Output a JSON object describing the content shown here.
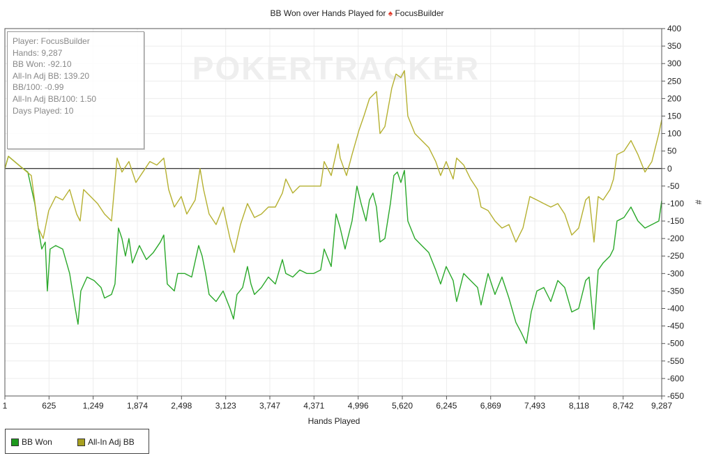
{
  "chart_data": {
    "type": "line",
    "title_prefix": "BB Won over Hands Played for",
    "title_player": "FocusBuilder",
    "title_icon": "spade-icon",
    "xlabel": "Hands Played",
    "ylabel": "#",
    "xlim": [
      1,
      9287
    ],
    "ylim": [
      -650,
      400
    ],
    "x_ticks": [
      1,
      625,
      1249,
      1874,
      2498,
      3123,
      3747,
      4371,
      4996,
      5620,
      6245,
      6869,
      7493,
      8118,
      8742,
      9287
    ],
    "x_tick_labels": [
      "1",
      "625",
      "1,249",
      "1,874",
      "2,498",
      "3,123",
      "3,747",
      "4,371",
      "4,996",
      "5,620",
      "6,245",
      "6,869",
      "7,493",
      "8,118",
      "8,742",
      "9,287"
    ],
    "y_ticks": [
      400,
      350,
      300,
      250,
      200,
      150,
      100,
      50,
      0,
      -50,
      -100,
      -150,
      -200,
      -250,
      -300,
      -350,
      -400,
      -450,
      -500,
      -550,
      -600,
      -650
    ],
    "grid": true,
    "legend_position": "bottom-left",
    "watermark": "POKERTRACKER",
    "series": [
      {
        "name": "BB Won",
        "color": "#2aa82a",
        "points": [
          [
            1,
            0
          ],
          [
            50,
            35
          ],
          [
            227,
            5
          ],
          [
            325,
            -10
          ],
          [
            424,
            -100
          ],
          [
            473,
            -170
          ],
          [
            522,
            -230
          ],
          [
            572,
            -210
          ],
          [
            601,
            -350
          ],
          [
            641,
            -230
          ],
          [
            720,
            -220
          ],
          [
            818,
            -230
          ],
          [
            917,
            -300
          ],
          [
            996,
            -400
          ],
          [
            1035,
            -445
          ],
          [
            1075,
            -350
          ],
          [
            1163,
            -310
          ],
          [
            1262,
            -320
          ],
          [
            1360,
            -340
          ],
          [
            1410,
            -370
          ],
          [
            1508,
            -360
          ],
          [
            1558,
            -330
          ],
          [
            1607,
            -170
          ],
          [
            1656,
            -200
          ],
          [
            1705,
            -250
          ],
          [
            1755,
            -200
          ],
          [
            1804,
            -270
          ],
          [
            1903,
            -220
          ],
          [
            2001,
            -260
          ],
          [
            2100,
            -240
          ],
          [
            2199,
            -210
          ],
          [
            2248,
            -190
          ],
          [
            2297,
            -330
          ],
          [
            2396,
            -350
          ],
          [
            2445,
            -300
          ],
          [
            2543,
            -300
          ],
          [
            2642,
            -310
          ],
          [
            2740,
            -220
          ],
          [
            2790,
            -250
          ],
          [
            2839,
            -300
          ],
          [
            2888,
            -360
          ],
          [
            2987,
            -380
          ],
          [
            3086,
            -350
          ],
          [
            3184,
            -400
          ],
          [
            3233,
            -430
          ],
          [
            3283,
            -360
          ],
          [
            3362,
            -340
          ],
          [
            3431,
            -280
          ],
          [
            3480,
            -330
          ],
          [
            3529,
            -360
          ],
          [
            3628,
            -340
          ],
          [
            3726,
            -310
          ],
          [
            3825,
            -330
          ],
          [
            3924,
            -260
          ],
          [
            3973,
            -300
          ],
          [
            4071,
            -310
          ],
          [
            4170,
            -290
          ],
          [
            4269,
            -300
          ],
          [
            4367,
            -300
          ],
          [
            4466,
            -290
          ],
          [
            4515,
            -230
          ],
          [
            4614,
            -280
          ],
          [
            4683,
            -130
          ],
          [
            4742,
            -170
          ],
          [
            4811,
            -230
          ],
          [
            4909,
            -150
          ],
          [
            4978,
            -50
          ],
          [
            5037,
            -100
          ],
          [
            5106,
            -150
          ],
          [
            5156,
            -90
          ],
          [
            5205,
            -70
          ],
          [
            5254,
            -110
          ],
          [
            5304,
            -210
          ],
          [
            5373,
            -200
          ],
          [
            5451,
            -100
          ],
          [
            5501,
            -20
          ],
          [
            5550,
            -10
          ],
          [
            5599,
            -40
          ],
          [
            5649,
            -5
          ],
          [
            5698,
            -150
          ],
          [
            5797,
            -200
          ],
          [
            5895,
            -220
          ],
          [
            5994,
            -240
          ],
          [
            6092,
            -290
          ],
          [
            6161,
            -330
          ],
          [
            6240,
            -280
          ],
          [
            6339,
            -320
          ],
          [
            6388,
            -380
          ],
          [
            6487,
            -300
          ],
          [
            6585,
            -320
          ],
          [
            6684,
            -340
          ],
          [
            6733,
            -390
          ],
          [
            6832,
            -300
          ],
          [
            6930,
            -360
          ],
          [
            7029,
            -310
          ],
          [
            7127,
            -370
          ],
          [
            7226,
            -440
          ],
          [
            7305,
            -470
          ],
          [
            7374,
            -500
          ],
          [
            7443,
            -410
          ],
          [
            7522,
            -350
          ],
          [
            7620,
            -340
          ],
          [
            7719,
            -380
          ],
          [
            7818,
            -320
          ],
          [
            7916,
            -340
          ],
          [
            8015,
            -410
          ],
          [
            8113,
            -400
          ],
          [
            8212,
            -320
          ],
          [
            8261,
            -310
          ],
          [
            8330,
            -460
          ],
          [
            8389,
            -290
          ],
          [
            8458,
            -270
          ],
          [
            8557,
            -250
          ],
          [
            8606,
            -230
          ],
          [
            8655,
            -150
          ],
          [
            8754,
            -140
          ],
          [
            8852,
            -110
          ],
          [
            8951,
            -150
          ],
          [
            9050,
            -170
          ],
          [
            9148,
            -160
          ],
          [
            9247,
            -150
          ],
          [
            9287,
            -92.1
          ]
        ]
      },
      {
        "name": "All-In Adj BB",
        "color": "#b5b030",
        "points": [
          [
            1,
            0
          ],
          [
            50,
            35
          ],
          [
            227,
            5
          ],
          [
            375,
            -20
          ],
          [
            473,
            -170
          ],
          [
            542,
            -200
          ],
          [
            621,
            -120
          ],
          [
            720,
            -80
          ],
          [
            818,
            -90
          ],
          [
            917,
            -60
          ],
          [
            1015,
            -130
          ],
          [
            1065,
            -150
          ],
          [
            1114,
            -60
          ],
          [
            1213,
            -80
          ],
          [
            1311,
            -100
          ],
          [
            1410,
            -130
          ],
          [
            1508,
            -150
          ],
          [
            1587,
            30
          ],
          [
            1656,
            -10
          ],
          [
            1755,
            20
          ],
          [
            1853,
            -40
          ],
          [
            1952,
            -10
          ],
          [
            2050,
            20
          ],
          [
            2149,
            10
          ],
          [
            2248,
            30
          ],
          [
            2317,
            -60
          ],
          [
            2396,
            -110
          ],
          [
            2494,
            -80
          ],
          [
            2573,
            -130
          ],
          [
            2691,
            -90
          ],
          [
            2760,
            0
          ],
          [
            2810,
            -60
          ],
          [
            2888,
            -130
          ],
          [
            2987,
            -160
          ],
          [
            3086,
            -110
          ],
          [
            3184,
            -200
          ],
          [
            3243,
            -240
          ],
          [
            3332,
            -160
          ],
          [
            3431,
            -100
          ],
          [
            3529,
            -140
          ],
          [
            3628,
            -130
          ],
          [
            3726,
            -110
          ],
          [
            3825,
            -110
          ],
          [
            3924,
            -70
          ],
          [
            3973,
            -30
          ],
          [
            4071,
            -70
          ],
          [
            4170,
            -50
          ],
          [
            4269,
            -50
          ],
          [
            4367,
            -50
          ],
          [
            4466,
            -50
          ],
          [
            4515,
            20
          ],
          [
            4614,
            -20
          ],
          [
            4713,
            70
          ],
          [
            4742,
            30
          ],
          [
            4830,
            -20
          ],
          [
            4909,
            40
          ],
          [
            5008,
            110
          ],
          [
            5077,
            150
          ],
          [
            5156,
            200
          ],
          [
            5254,
            220
          ],
          [
            5304,
            100
          ],
          [
            5373,
            120
          ],
          [
            5471,
            230
          ],
          [
            5530,
            270
          ],
          [
            5599,
            260
          ],
          [
            5649,
            280
          ],
          [
            5698,
            150
          ],
          [
            5797,
            100
          ],
          [
            5895,
            80
          ],
          [
            5994,
            60
          ],
          [
            6092,
            20
          ],
          [
            6161,
            -20
          ],
          [
            6240,
            20
          ],
          [
            6339,
            -30
          ],
          [
            6388,
            30
          ],
          [
            6487,
            10
          ],
          [
            6585,
            -30
          ],
          [
            6684,
            -60
          ],
          [
            6733,
            -110
          ],
          [
            6832,
            -120
          ],
          [
            6930,
            -150
          ],
          [
            7029,
            -170
          ],
          [
            7127,
            -160
          ],
          [
            7226,
            -210
          ],
          [
            7325,
            -170
          ],
          [
            7423,
            -80
          ],
          [
            7522,
            -90
          ],
          [
            7620,
            -100
          ],
          [
            7719,
            -110
          ],
          [
            7818,
            -100
          ],
          [
            7916,
            -130
          ],
          [
            8015,
            -190
          ],
          [
            8113,
            -170
          ],
          [
            8212,
            -90
          ],
          [
            8261,
            -80
          ],
          [
            8330,
            -210
          ],
          [
            8389,
            -80
          ],
          [
            8458,
            -90
          ],
          [
            8557,
            -60
          ],
          [
            8606,
            -30
          ],
          [
            8655,
            40
          ],
          [
            8754,
            50
          ],
          [
            8852,
            80
          ],
          [
            8951,
            40
          ],
          [
            9050,
            -10
          ],
          [
            9148,
            20
          ],
          [
            9247,
            100
          ],
          [
            9287,
            139.2
          ]
        ]
      }
    ]
  },
  "info_box": {
    "player": "Player: FocusBuilder",
    "hands": "Hands: 9,287",
    "bb_won": "BB Won: -92.10",
    "allin_adj_bb": "All-In Adj BB: 139.20",
    "bb_per_100": "BB/100: -0.99",
    "allin_adj_bb_per_100": "All-In Adj BB/100: 1.50",
    "days_played": "Days Played: 10"
  },
  "legend": [
    {
      "label": "BB Won",
      "color": "#1e9a1e"
    },
    {
      "label": "All-In Adj BB",
      "color": "#a8a020"
    }
  ]
}
